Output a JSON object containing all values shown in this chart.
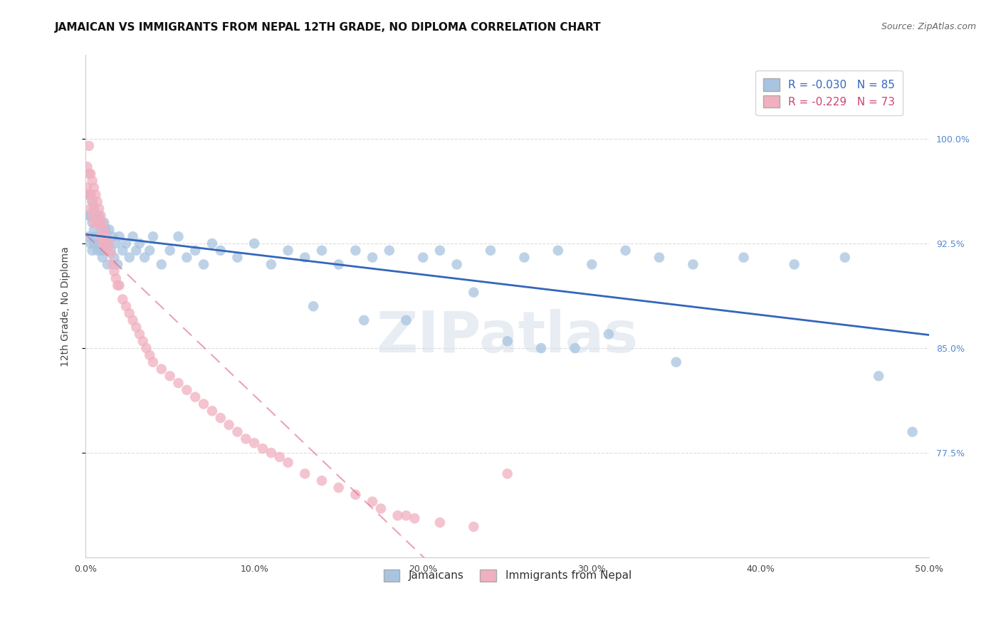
{
  "title": "JAMAICAN VS IMMIGRANTS FROM NEPAL 12TH GRADE, NO DIPLOMA CORRELATION CHART",
  "source": "Source: ZipAtlas.com",
  "ylabel_left": "12th Grade, No Diploma",
  "y_ticks": [
    0.775,
    0.85,
    0.925,
    1.0
  ],
  "y_tick_labels_right": [
    "77.5%",
    "85.0%",
    "92.5%",
    "100.0%"
  ],
  "xlim": [
    0.0,
    0.5
  ],
  "ylim": [
    0.7,
    1.06
  ],
  "blue_R": -0.03,
  "blue_N": 85,
  "pink_R": -0.229,
  "pink_N": 73,
  "blue_color": "#a8c4e0",
  "pink_color": "#f0b0c0",
  "blue_line_color": "#3366bb",
  "pink_line_color": "#dd6688",
  "grid_color": "#dddddd",
  "background_color": "#ffffff",
  "legend_label_blue": "Jamaicans",
  "legend_label_pink": "Immigrants from Nepal",
  "blue_scatter_x": [
    0.001,
    0.002,
    0.002,
    0.003,
    0.003,
    0.003,
    0.004,
    0.004,
    0.004,
    0.005,
    0.005,
    0.005,
    0.006,
    0.006,
    0.007,
    0.007,
    0.008,
    0.008,
    0.009,
    0.009,
    0.01,
    0.01,
    0.011,
    0.011,
    0.012,
    0.013,
    0.013,
    0.014,
    0.015,
    0.016,
    0.017,
    0.018,
    0.019,
    0.02,
    0.022,
    0.024,
    0.026,
    0.028,
    0.03,
    0.032,
    0.035,
    0.038,
    0.04,
    0.045,
    0.05,
    0.055,
    0.06,
    0.065,
    0.07,
    0.075,
    0.08,
    0.09,
    0.1,
    0.11,
    0.12,
    0.13,
    0.14,
    0.15,
    0.16,
    0.17,
    0.18,
    0.2,
    0.21,
    0.22,
    0.24,
    0.26,
    0.28,
    0.3,
    0.32,
    0.34,
    0.36,
    0.39,
    0.42,
    0.45,
    0.47,
    0.49,
    0.35,
    0.25,
    0.19,
    0.29,
    0.135,
    0.165,
    0.23,
    0.27,
    0.31
  ],
  "blue_scatter_y": [
    0.96,
    0.945,
    0.93,
    0.96,
    0.945,
    0.925,
    0.955,
    0.94,
    0.92,
    0.95,
    0.935,
    0.925,
    0.945,
    0.93,
    0.94,
    0.92,
    0.945,
    0.925,
    0.94,
    0.92,
    0.935,
    0.915,
    0.94,
    0.92,
    0.935,
    0.925,
    0.91,
    0.935,
    0.92,
    0.93,
    0.915,
    0.925,
    0.91,
    0.93,
    0.92,
    0.925,
    0.915,
    0.93,
    0.92,
    0.925,
    0.915,
    0.92,
    0.93,
    0.91,
    0.92,
    0.93,
    0.915,
    0.92,
    0.91,
    0.925,
    0.92,
    0.915,
    0.925,
    0.91,
    0.92,
    0.915,
    0.92,
    0.91,
    0.92,
    0.915,
    0.92,
    0.915,
    0.92,
    0.91,
    0.92,
    0.915,
    0.92,
    0.91,
    0.92,
    0.915,
    0.91,
    0.915,
    0.91,
    0.915,
    0.83,
    0.79,
    0.84,
    0.855,
    0.87,
    0.85,
    0.88,
    0.87,
    0.89,
    0.85,
    0.86
  ],
  "pink_scatter_x": [
    0.001,
    0.001,
    0.002,
    0.002,
    0.002,
    0.003,
    0.003,
    0.003,
    0.004,
    0.004,
    0.004,
    0.005,
    0.005,
    0.005,
    0.006,
    0.006,
    0.007,
    0.007,
    0.008,
    0.008,
    0.009,
    0.009,
    0.01,
    0.01,
    0.011,
    0.011,
    0.012,
    0.013,
    0.014,
    0.015,
    0.016,
    0.017,
    0.018,
    0.019,
    0.02,
    0.022,
    0.024,
    0.026,
    0.028,
    0.03,
    0.032,
    0.034,
    0.036,
    0.038,
    0.04,
    0.045,
    0.05,
    0.055,
    0.06,
    0.065,
    0.07,
    0.075,
    0.08,
    0.085,
    0.09,
    0.095,
    0.1,
    0.105,
    0.11,
    0.115,
    0.12,
    0.13,
    0.14,
    0.15,
    0.16,
    0.17,
    0.175,
    0.185,
    0.195,
    0.21,
    0.23,
    0.25,
    0.19
  ],
  "pink_scatter_y": [
    0.98,
    0.965,
    0.995,
    0.975,
    0.96,
    0.975,
    0.96,
    0.95,
    0.97,
    0.955,
    0.945,
    0.965,
    0.95,
    0.94,
    0.96,
    0.945,
    0.955,
    0.94,
    0.95,
    0.938,
    0.945,
    0.93,
    0.94,
    0.925,
    0.935,
    0.925,
    0.93,
    0.92,
    0.925,
    0.918,
    0.91,
    0.905,
    0.9,
    0.895,
    0.895,
    0.885,
    0.88,
    0.875,
    0.87,
    0.865,
    0.86,
    0.855,
    0.85,
    0.845,
    0.84,
    0.835,
    0.83,
    0.825,
    0.82,
    0.815,
    0.81,
    0.805,
    0.8,
    0.795,
    0.79,
    0.785,
    0.782,
    0.778,
    0.775,
    0.772,
    0.768,
    0.76,
    0.755,
    0.75,
    0.745,
    0.74,
    0.735,
    0.73,
    0.728,
    0.725,
    0.722,
    0.76,
    0.73
  ],
  "watermark": "ZIPatlas",
  "title_fontsize": 11,
  "source_fontsize": 9,
  "axis_label_fontsize": 10,
  "tick_fontsize": 9,
  "legend_fontsize": 10
}
